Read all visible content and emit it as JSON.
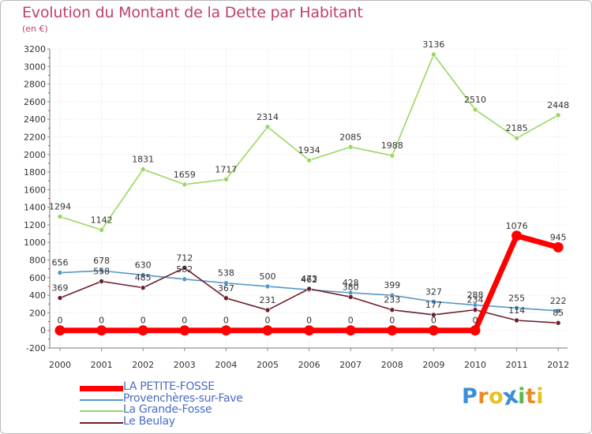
{
  "title": "Evolution du Montant de la Dette par Habitant",
  "unit": "(en €)",
  "logo": {
    "text": "Proxiti",
    "letters": [
      "P",
      "r",
      "o",
      "x",
      "i",
      "t",
      "i"
    ]
  },
  "chart_data": {
    "type": "line",
    "title": "Evolution du Montant de la Dette par Habitant",
    "ylabel": "(en €)",
    "xlabel": "",
    "ylim": [
      -200,
      3200
    ],
    "yticks": [
      -200,
      0,
      200,
      400,
      600,
      800,
      1000,
      1200,
      1400,
      1600,
      1800,
      2000,
      2200,
      2400,
      2600,
      2800,
      3000,
      3200
    ],
    "categories": [
      "2000",
      "2001",
      "2002",
      "2003",
      "2004",
      "2005",
      "2006",
      "2007",
      "2008",
      "2009",
      "2010",
      "2011",
      "2012"
    ],
    "series": [
      {
        "name": "LA PETITE-FOSSE",
        "color": "#ff0000",
        "values": [
          0,
          0,
          0,
          0,
          0,
          0,
          0,
          0,
          0,
          0,
          0,
          1076,
          945
        ]
      },
      {
        "name": "Provenchères-sur-Fave",
        "color": "#5596c8",
        "values": [
          656,
          678,
          630,
          582,
          538,
          500,
          462,
          428,
          399,
          327,
          288,
          255,
          222
        ]
      },
      {
        "name": "La Grande-Fosse",
        "color": "#99d860",
        "values": [
          1294,
          1142,
          1831,
          1659,
          1717,
          2314,
          1934,
          2085,
          1988,
          3136,
          2510,
          2185,
          2448
        ]
      },
      {
        "name": "Le Beulay",
        "color": "#6e1e2a",
        "values": [
          369,
          558,
          485,
          712,
          367,
          231,
          473,
          380,
          233,
          177,
          234,
          114,
          85
        ]
      }
    ]
  }
}
